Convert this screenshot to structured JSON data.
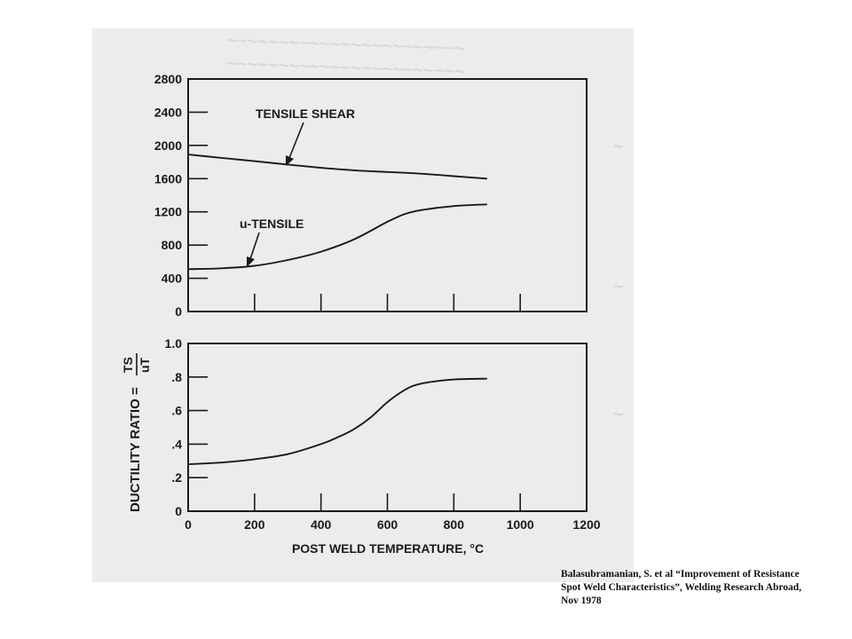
{
  "citation": {
    "line1": "Balasubramanian, S. et al “Improvement of Resistance",
    "line2": "Spot Weld Characteristics”, Welding Research Abroad,",
    "line3": "Nov 1978"
  },
  "chart_data": [
    {
      "type": "line",
      "title": "",
      "xlabel": "",
      "ylabel": "",
      "xlim": [
        0,
        1200
      ],
      "ylim": [
        0,
        2800
      ],
      "yticks": [
        "0",
        "400",
        "800",
        "1200",
        "1600",
        "2000",
        "2400",
        "2800"
      ],
      "series": [
        {
          "name": "TENSILE SHEAR",
          "x": [
            0,
            100,
            200,
            300,
            400,
            500,
            600,
            700,
            800,
            900
          ],
          "y": [
            1890,
            1850,
            1810,
            1770,
            1730,
            1700,
            1680,
            1660,
            1630,
            1600
          ]
        },
        {
          "name": "u-TENSILE",
          "x": [
            0,
            100,
            200,
            300,
            400,
            500,
            600,
            650,
            700,
            800,
            900
          ],
          "y": [
            510,
            520,
            550,
            620,
            720,
            870,
            1080,
            1170,
            1220,
            1270,
            1290
          ]
        }
      ]
    },
    {
      "type": "line",
      "title": "",
      "xlabel": "POST WELD TEMPERATURE, °C",
      "ylabel": "DUCTILITY RATIO =",
      "ylabel_num": "TS",
      "ylabel_den": "uT",
      "xlim": [
        0,
        1200
      ],
      "ylim": [
        0,
        1.0
      ],
      "xticks": [
        "0",
        "200",
        "400",
        "600",
        "800",
        "1000",
        "1200"
      ],
      "yticks": [
        "0",
        ".2",
        ".4",
        ".6",
        ".8",
        "1.0"
      ],
      "series": [
        {
          "name": "",
          "x": [
            0,
            100,
            200,
            300,
            400,
            450,
            500,
            550,
            600,
            650,
            700,
            800,
            900
          ],
          "y": [
            0.28,
            0.29,
            0.31,
            0.34,
            0.4,
            0.44,
            0.49,
            0.56,
            0.65,
            0.72,
            0.76,
            0.785,
            0.79
          ]
        }
      ]
    }
  ]
}
